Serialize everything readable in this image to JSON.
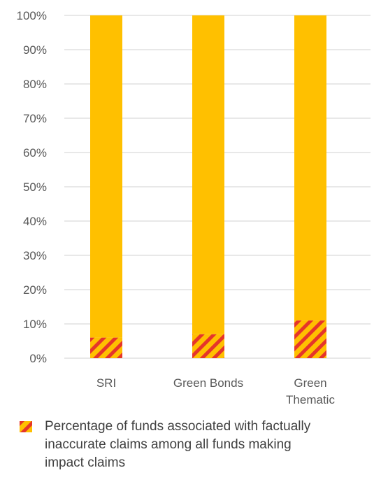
{
  "chart_data": {
    "type": "bar",
    "stacked": true,
    "categories": [
      "SRI",
      "Green Bonds",
      "Green Thematic"
    ],
    "category_lines": [
      [
        "SRI"
      ],
      [
        "Green Bonds"
      ],
      [
        "Green",
        "Thematic"
      ]
    ],
    "series": [
      {
        "name": "Percentage of funds associated with factually inaccurate claims among all funds making impact claims",
        "values": [
          6,
          7,
          11
        ],
        "fill": "hatched",
        "colors": [
          "#E5352A",
          "#FFC000"
        ]
      },
      {
        "values": [
          94,
          93,
          89
        ],
        "color": "#FFC000"
      }
    ],
    "yticks": [
      "0%",
      "10%",
      "20%",
      "30%",
      "40%",
      "50%",
      "60%",
      "70%",
      "80%",
      "90%",
      "100%"
    ],
    "ylim": [
      0,
      100
    ],
    "grid": true,
    "legend_position": "bottom",
    "colors": {
      "gridline": "#D9D9D9",
      "bar": "#FFC000",
      "hatch": "#E5352A"
    }
  }
}
